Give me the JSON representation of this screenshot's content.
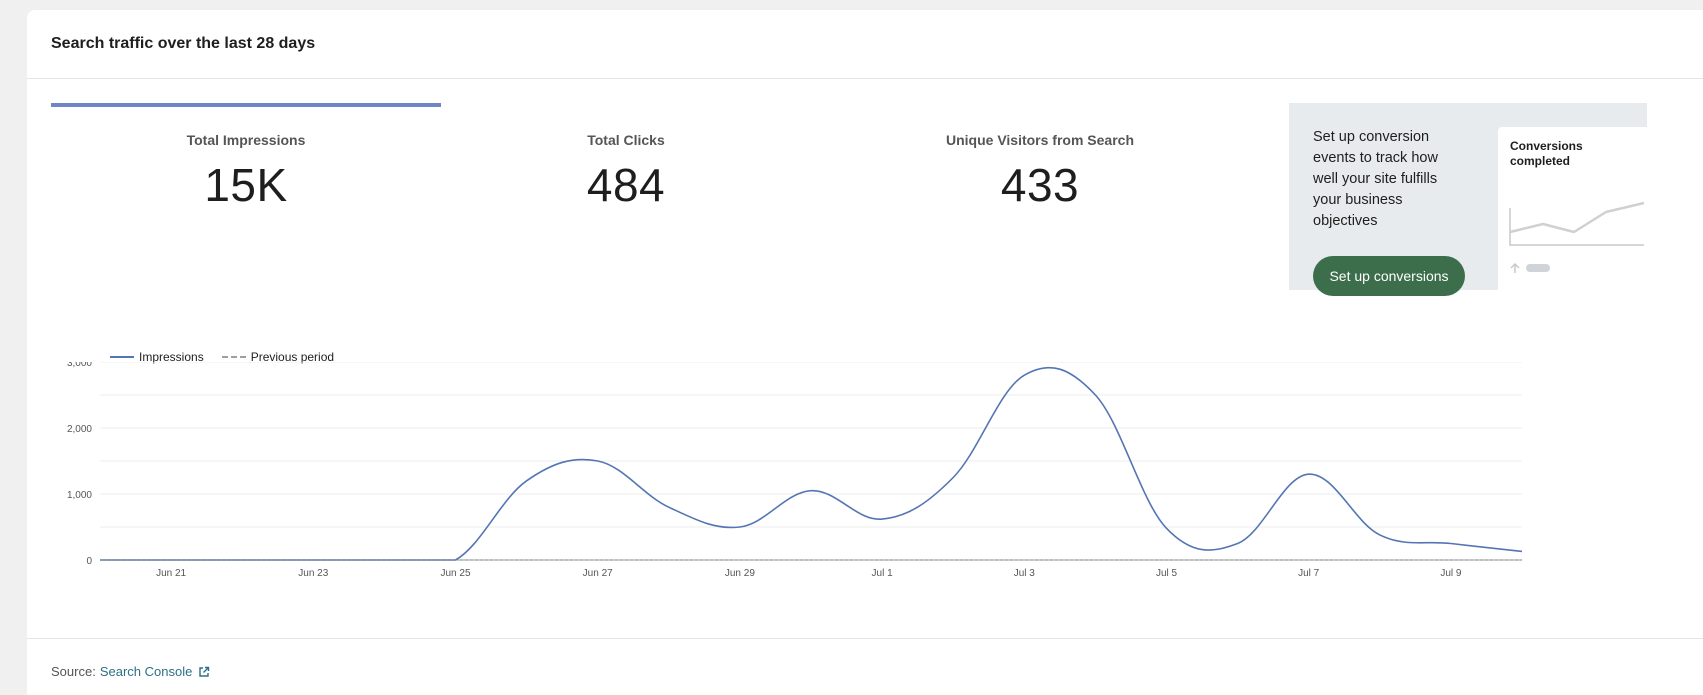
{
  "card": {
    "title": "Search traffic over the last 28 days"
  },
  "tabs": [
    {
      "label": "Total Impressions",
      "value": "15K",
      "active": true
    },
    {
      "label": "Total Clicks",
      "value": "484",
      "active": false
    },
    {
      "label": "Unique Visitors from Search",
      "value": "433",
      "active": false
    }
  ],
  "promo": {
    "text": "Set up conversion events to track how well your site fulfills your business objectives",
    "button_label": "Set up conversions",
    "mini_card_title": "Conversions completed",
    "icons": {
      "trend": "arrow-up-icon"
    }
  },
  "legend": {
    "primary": "Impressions",
    "secondary": "Previous period"
  },
  "colors": {
    "accent": "#6f86c6",
    "line": "#5475b4",
    "button": "#3c6e4b",
    "link": "#2d6f87"
  },
  "chart_data": {
    "type": "line",
    "x": [
      "Jun 20",
      "Jun 21",
      "Jun 22",
      "Jun 23",
      "Jun 24",
      "Jun 25",
      "Jun 26",
      "Jun 27",
      "Jun 28",
      "Jun 29",
      "Jun 30",
      "Jul 1",
      "Jul 2",
      "Jul 3",
      "Jul 4",
      "Jul 5",
      "Jul 6",
      "Jul 7",
      "Jul 8",
      "Jul 9",
      "Jul 10"
    ],
    "x_tick_labels": [
      "Jun 21",
      "Jun 23",
      "Jun 25",
      "Jun 27",
      "Jun 29",
      "Jul 1",
      "Jul 3",
      "Jul 5",
      "Jul 7",
      "Jul 9"
    ],
    "series": [
      {
        "name": "Impressions",
        "values": [
          0,
          0,
          0,
          0,
          0,
          0,
          1200,
          1500,
          800,
          500,
          1050,
          620,
          1250,
          2800,
          2500,
          480,
          250,
          1300,
          380,
          250,
          130
        ]
      },
      {
        "name": "Previous period",
        "values": [
          0,
          0,
          0,
          0,
          0,
          0,
          0,
          0,
          0,
          0,
          0,
          0,
          0,
          0,
          0,
          0,
          0,
          0,
          0,
          0,
          0
        ]
      }
    ],
    "y_ticks": [
      "0",
      "1,000",
      "2,000",
      "3,000"
    ],
    "ylim": [
      0,
      3000
    ],
    "grid": true,
    "legend_position": "top-left"
  },
  "footer": {
    "source_label": "Source:",
    "source_link": "Search Console",
    "link_icon": "external-link-icon"
  }
}
